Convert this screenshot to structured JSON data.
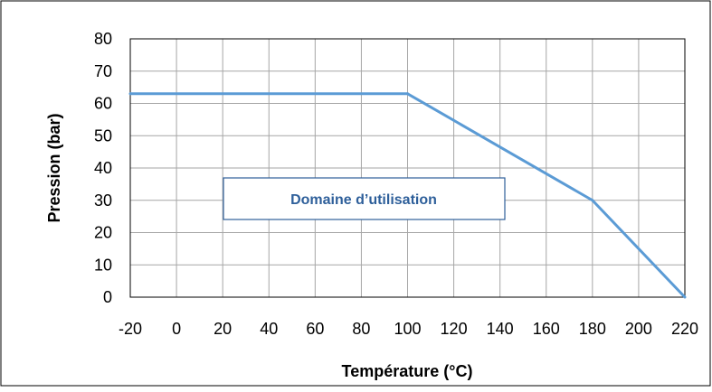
{
  "chart_data": {
    "type": "line",
    "title": "",
    "xlabel": "Température (°C)",
    "ylabel": "Pression (bar)",
    "xlim": [
      -20,
      220
    ],
    "ylim": [
      0,
      80
    ],
    "x_ticks": [
      -20,
      0,
      20,
      40,
      60,
      80,
      100,
      120,
      140,
      160,
      180,
      200,
      220
    ],
    "y_ticks": [
      0,
      10,
      20,
      30,
      40,
      50,
      60,
      70,
      80
    ],
    "x_tick_labels": [
      "-20",
      "0",
      "20",
      "40",
      "60",
      "80",
      "100",
      "120",
      "140",
      "160",
      "180",
      "200",
      "220"
    ],
    "y_tick_labels": [
      "0",
      "10",
      "20",
      "30",
      "40",
      "50",
      "60",
      "70",
      "80"
    ],
    "grid": true,
    "legend": "none",
    "series": [
      {
        "x": [
          -20,
          100,
          180,
          220
        ],
        "y": [
          63,
          63,
          30,
          0
        ],
        "color": "#5b9bd5"
      }
    ],
    "annotations": [
      {
        "text": "Domaine d’utilisation",
        "text_color": "#2e5f9a",
        "border_color": "#2e5f9a"
      }
    ]
  }
}
